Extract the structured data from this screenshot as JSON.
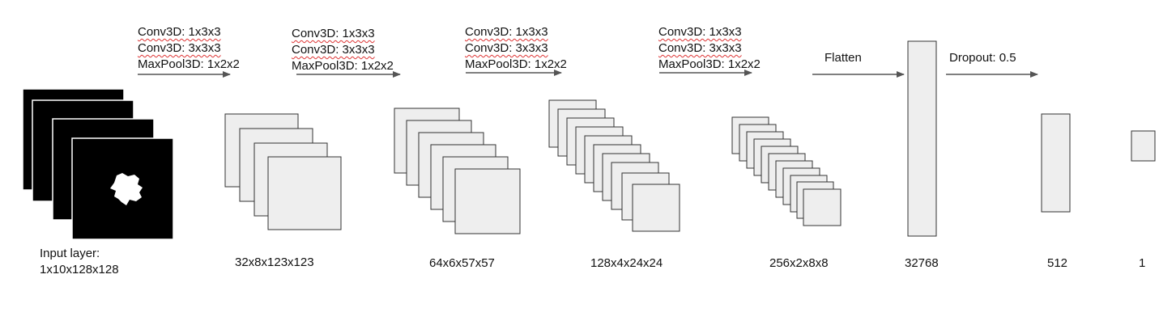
{
  "layers": [
    {
      "id": "input",
      "label_line1": "Input layer:",
      "label_line2": "1x10x128x128"
    },
    {
      "id": "conv1",
      "label": "32x8x123x123"
    },
    {
      "id": "conv2",
      "label": "64x6x57x57"
    },
    {
      "id": "conv3",
      "label": "128x4x24x24"
    },
    {
      "id": "conv4",
      "label": "256x2x8x8"
    },
    {
      "id": "flat",
      "label": "32768"
    },
    {
      "id": "dense",
      "label": "512"
    },
    {
      "id": "out",
      "label": "1"
    }
  ],
  "operations": [
    {
      "id": "block1",
      "lines": [
        "Conv3D: 1x3x3",
        "Conv3D: 3x3x3",
        "MaxPool3D: 1x2x2"
      ]
    },
    {
      "id": "block2",
      "lines": [
        "Conv3D: 1x3x3",
        "Conv3D: 3x3x3",
        "MaxPool3D: 1x2x2"
      ]
    },
    {
      "id": "block3",
      "lines": [
        "Conv3D: 1x3x3",
        "Conv3D: 3x3x3",
        "MaxPool3D: 1x2x2"
      ]
    },
    {
      "id": "block4",
      "lines": [
        "Conv3D: 1x3x3",
        "Conv3D: 3x3x3",
        "MaxPool3D: 1x2x2"
      ]
    },
    {
      "id": "flatten",
      "lines": [
        "Flatten"
      ]
    },
    {
      "id": "dropout",
      "lines": [
        "Dropout: 0.5"
      ]
    }
  ],
  "colors": {
    "feature_map_fill": "#eeeeee",
    "feature_map_stroke": "#333333",
    "input_fill": "#000000",
    "input_stroke": "#ffffff",
    "arrow": "#555555"
  }
}
